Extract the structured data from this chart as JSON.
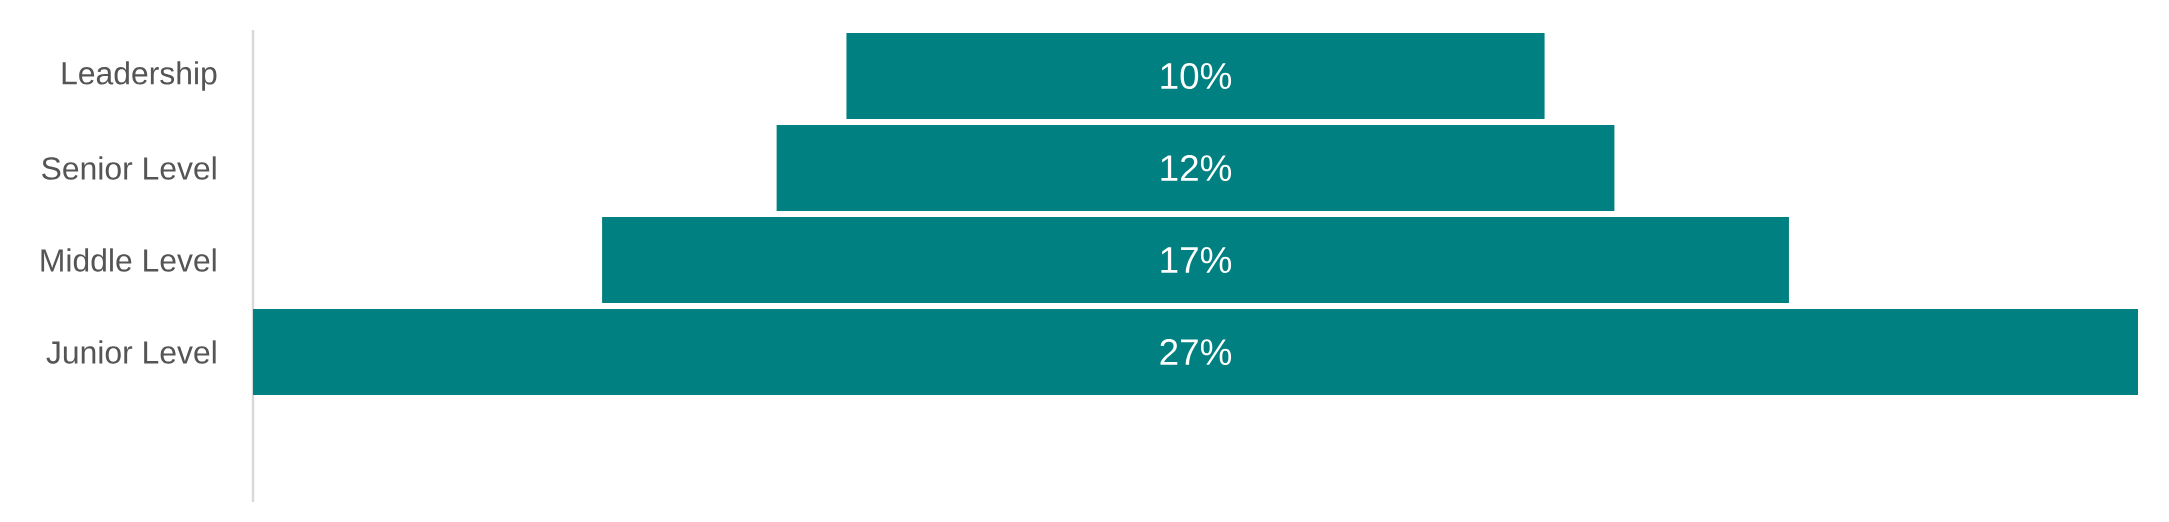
{
  "chart_data": {
    "type": "other",
    "categories": [
      "Leadership",
      "Senior Level",
      "Middle Level",
      "Junior Level"
    ],
    "values": [
      10,
      12,
      17,
      27
    ],
    "value_labels": [
      "10%",
      "12%",
      "17%",
      "27%"
    ],
    "color": "#008080"
  }
}
